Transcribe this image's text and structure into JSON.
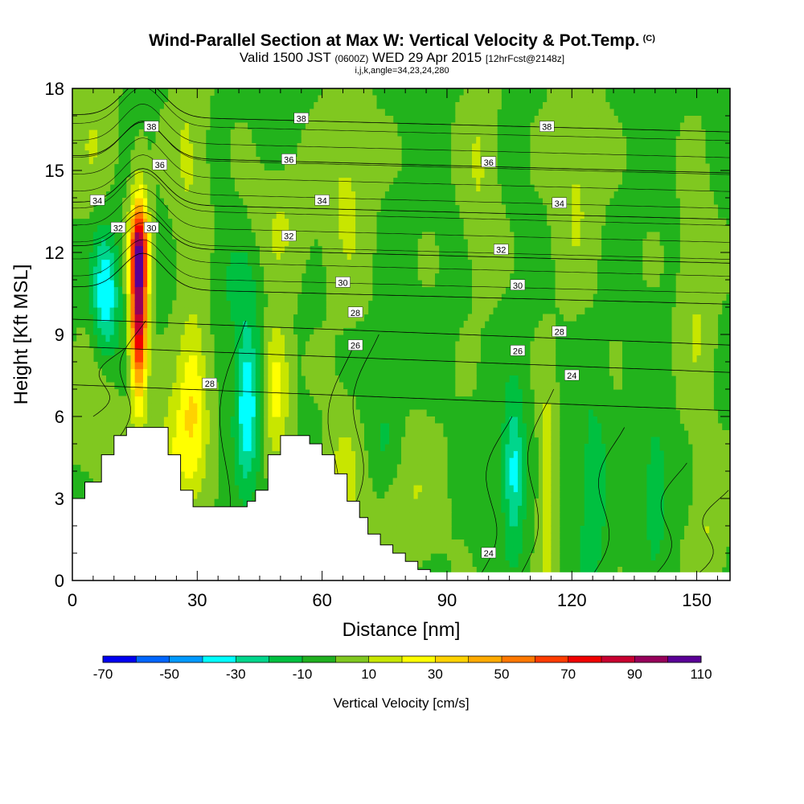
{
  "title": {
    "line1": "Wind-Parallel Section at Max W: Vertical Velocity & Pot.Temp.",
    "copyright": "(C)",
    "line2_a": "Valid 1500 JST",
    "line2_b": "(0600Z)",
    "line2_c": "WED 29 Apr 2015",
    "line2_d": "[12hrFcst@2148z]",
    "line3": "i,j,k,angle=34,23,24,280"
  },
  "chart_data": {
    "type": "heatmap",
    "title": "Wind-Parallel Section at Max W: Vertical Velocity & Pot.Temp.",
    "xlabel": "Distance [nm]",
    "ylabel": "Height [Kft MSL]",
    "xlim": [
      0,
      158
    ],
    "ylim": [
      0,
      18
    ],
    "xticks": [
      0,
      30,
      60,
      90,
      120,
      150
    ],
    "yticks": [
      0,
      3,
      6,
      9,
      12,
      15,
      18
    ],
    "grid": false,
    "colorbar": {
      "title": "Vertical Velocity [cm/s]",
      "labels": [
        -70,
        -50,
        -30,
        -10,
        10,
        30,
        50,
        70,
        90,
        110
      ],
      "colors": [
        "#0000f0",
        "#0066ff",
        "#0099ff",
        "#00ffff",
        "#00d68c",
        "#00c040",
        "#20b020",
        "#80c820",
        "#c8e600",
        "#ffff00",
        "#ffd200",
        "#ffaa00",
        "#ff7800",
        "#ff3c00",
        "#f00000",
        "#c80030",
        "#96005a",
        "#5a0096"
      ]
    },
    "background_velocity": "0 to 10 cm/s",
    "velocity_features": [
      {
        "x": 8,
        "y": 10.5,
        "w": -30,
        "note": "downdraft"
      },
      {
        "x": 16,
        "y": 9.5,
        "w": 90,
        "note": "strong updraft core"
      },
      {
        "x": 29,
        "y": 6.5,
        "w": 30
      },
      {
        "x": 42,
        "y": 6.5,
        "w": -30
      },
      {
        "x": 49,
        "y": 7,
        "w": 30
      },
      {
        "x": 106,
        "y": 4,
        "w": -30
      },
      {
        "x": 114,
        "y": 3.5,
        "w": 20
      }
    ],
    "contour_series": [
      {
        "name": "theta",
        "levels": [
          24,
          26,
          28,
          30,
          32,
          34,
          36,
          38
        ]
      }
    ],
    "contour_labels": [
      {
        "text": "38",
        "x": 19,
        "y": 16.6
      },
      {
        "text": "38",
        "x": 55,
        "y": 16.9
      },
      {
        "text": "38",
        "x": 114,
        "y": 16.6
      },
      {
        "text": "36",
        "x": 21,
        "y": 15.2
      },
      {
        "text": "36",
        "x": 52,
        "y": 15.4
      },
      {
        "text": "36",
        "x": 100,
        "y": 15.3
      },
      {
        "text": "34",
        "x": 6,
        "y": 13.9
      },
      {
        "text": "34",
        "x": 60,
        "y": 13.9
      },
      {
        "text": "34",
        "x": 117,
        "y": 13.8
      },
      {
        "text": "32",
        "x": 11,
        "y": 12.9
      },
      {
        "text": "32",
        "x": 52,
        "y": 12.6
      },
      {
        "text": "32",
        "x": 103,
        "y": 12.1
      },
      {
        "text": "30",
        "x": 19,
        "y": 12.9
      },
      {
        "text": "30",
        "x": 65,
        "y": 10.9
      },
      {
        "text": "30",
        "x": 107,
        "y": 10.8
      },
      {
        "text": "28",
        "x": 68,
        "y": 9.8
      },
      {
        "text": "28",
        "x": 117,
        "y": 9.1
      },
      {
        "text": "28",
        "x": 33,
        "y": 7.2
      },
      {
        "text": "26",
        "x": 68,
        "y": 8.6
      },
      {
        "text": "26",
        "x": 107,
        "y": 8.4
      },
      {
        "text": "24",
        "x": 120,
        "y": 7.5
      },
      {
        "text": "24",
        "x": 100,
        "y": 1.0
      }
    ],
    "terrain_tops": [
      [
        0,
        3.0
      ],
      [
        3,
        3.6
      ],
      [
        7,
        4.6
      ],
      [
        10,
        5.3
      ],
      [
        13,
        5.6
      ],
      [
        23,
        4.6
      ],
      [
        26,
        3.3
      ],
      [
        29,
        2.7
      ],
      [
        42,
        2.9
      ],
      [
        44,
        3.3
      ],
      [
        47,
        4.6
      ],
      [
        50,
        5.3
      ],
      [
        57,
        5.0
      ],
      [
        60,
        4.6
      ],
      [
        63,
        3.9
      ],
      [
        66,
        2.9
      ],
      [
        69,
        2.3
      ],
      [
        71,
        1.7
      ],
      [
        74,
        1.3
      ],
      [
        77,
        1.0
      ],
      [
        80,
        0.7
      ],
      [
        83,
        0.4
      ],
      [
        86,
        0
      ]
    ]
  }
}
